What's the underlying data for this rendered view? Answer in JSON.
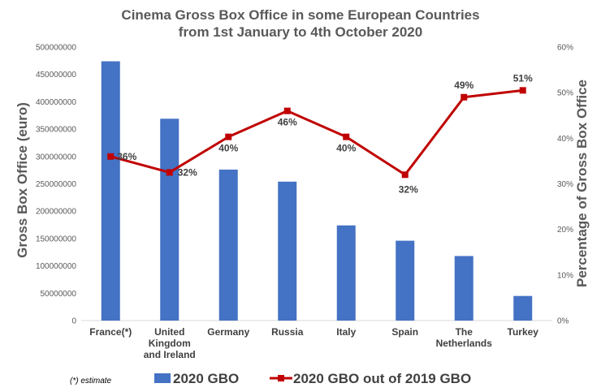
{
  "chart_data": {
    "type": "bar+line",
    "title_lines": [
      "Cinema Gross Box Office in some European Countries",
      "from 1st January to 4th October 2020"
    ],
    "ylabel": "Gross Box Office (euro)",
    "y2label": "Percentage of Gross Box Office",
    "ylim": [
      0,
      500000000
    ],
    "y2lim": [
      0,
      60
    ],
    "yticks": [
      "0",
      "50000000",
      "100000000",
      "150000000",
      "200000000",
      "250000000",
      "300000000",
      "350000000",
      "400000000",
      "450000000",
      "500000000"
    ],
    "y2ticks": [
      "0%",
      "10%",
      "20%",
      "30%",
      "40%",
      "50%",
      "60%"
    ],
    "categories": [
      [
        "France(*)"
      ],
      [
        "United",
        "Kingdom",
        "and Ireland"
      ],
      [
        "Germany"
      ],
      [
        "Russia"
      ],
      [
        "Italy"
      ],
      [
        "Spain"
      ],
      [
        "The",
        "Netherlands"
      ],
      [
        "Turkey"
      ]
    ],
    "series": [
      {
        "name": "2020 GBO",
        "type": "bar",
        "axis": "left",
        "color": "#4472C4",
        "values": [
          474000000,
          369000000,
          276000000,
          254000000,
          174000000,
          146000000,
          118000000,
          45000000
        ]
      },
      {
        "name": "2020 GBO out of 2019 GBO",
        "type": "line",
        "axis": "right",
        "color": "#C00000",
        "values": [
          36,
          32.5,
          40.3,
          46,
          40.3,
          32,
          49,
          50.5
        ],
        "labels": [
          "36%",
          "32%",
          "40%",
          "46%",
          "40%",
          "32%",
          "49%",
          "51%"
        ]
      }
    ],
    "legend": {
      "placement": "bottom"
    },
    "footnote": "(*) estimate",
    "grid": false
  }
}
